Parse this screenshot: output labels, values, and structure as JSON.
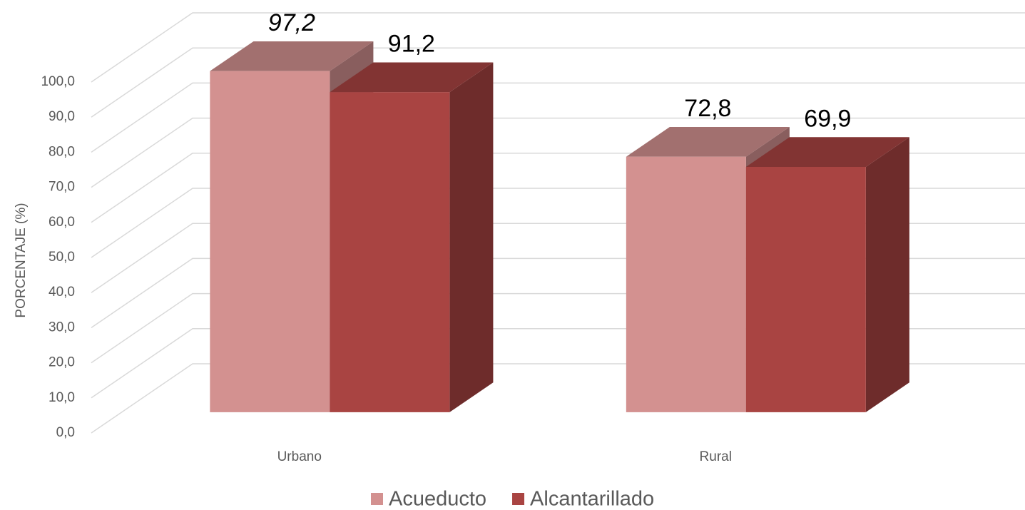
{
  "chart_data": {
    "type": "bar3d",
    "y_axis_label": "PORCENTAJE (%)",
    "categories": [
      "Urbano",
      "Rural"
    ],
    "series": [
      {
        "name": "Acueducto",
        "color": "#d39190",
        "values": [
          97.2,
          72.8
        ],
        "value_labels": [
          "97,2",
          "72,8"
        ]
      },
      {
        "name": "Alcantarillado",
        "color": "#a94442",
        "values": [
          91.2,
          69.9
        ],
        "value_labels": [
          "91,2",
          "69,9"
        ]
      }
    ],
    "ylim": [
      0,
      100
    ],
    "yticks": [
      {
        "value": 0,
        "label": "0,0"
      },
      {
        "value": 10,
        "label": "10,0"
      },
      {
        "value": 20,
        "label": "20,0"
      },
      {
        "value": 30,
        "label": "30,0"
      },
      {
        "value": 40,
        "label": "40,0"
      },
      {
        "value": 50,
        "label": "50,0"
      },
      {
        "value": 60,
        "label": "60,0"
      },
      {
        "value": 70,
        "label": "70,0"
      },
      {
        "value": 80,
        "label": "80,0"
      },
      {
        "value": 90,
        "label": "90,0"
      },
      {
        "value": 100,
        "label": "100,0"
      }
    ],
    "grid": true,
    "legend": "bottom"
  }
}
